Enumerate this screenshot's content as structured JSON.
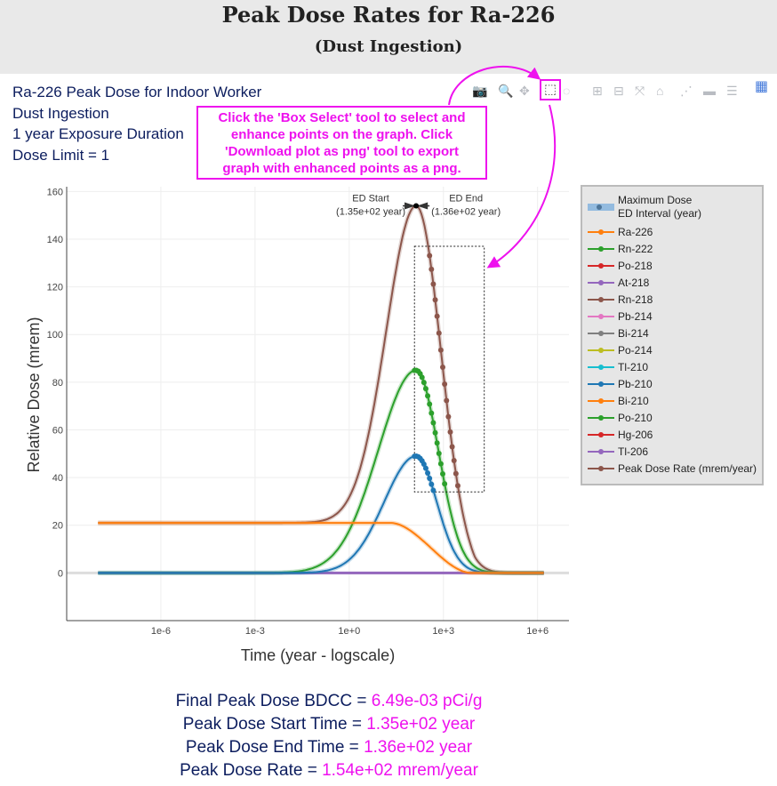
{
  "header": {
    "title": "Peak Dose Rates for Ra-226",
    "subtitle": "(Dust Ingestion)"
  },
  "info_lines": [
    "Ra-226 Peak Dose for Indoor Worker",
    "Dust Ingestion",
    "1 year Exposure Duration",
    "Dose Limit = 1"
  ],
  "callout": {
    "lines": [
      "Click the 'Box Select' tool to select and",
      "enhance points on the graph. Click",
      "'Download plot as png' tool to export",
      "graph with enhanced points as a png."
    ]
  },
  "modebar": {
    "tools": [
      {
        "name": "download-png-tool",
        "icon": "camera-icon",
        "glyph": "📷"
      },
      {
        "name": "zoom-tool",
        "icon": "zoom-icon",
        "glyph": "🔍"
      },
      {
        "name": "pan-tool",
        "icon": "pan-icon",
        "glyph": "✥"
      },
      {
        "name": "box-select-tool",
        "icon": "box-select-icon",
        "glyph": "⬚"
      },
      {
        "name": "lasso-select-tool",
        "icon": "lasso-icon",
        "glyph": "◌"
      },
      {
        "name": "zoom-in-tool",
        "icon": "zoom-in-icon",
        "glyph": "⊞"
      },
      {
        "name": "zoom-out-tool",
        "icon": "zoom-out-icon",
        "glyph": "⊟"
      },
      {
        "name": "autoscale-tool",
        "icon": "autoscale-icon",
        "glyph": "⤧"
      },
      {
        "name": "reset-axes-tool",
        "icon": "home-icon",
        "glyph": "⌂"
      },
      {
        "name": "spike-lines-tool",
        "icon": "spike-icon",
        "glyph": "⋰"
      },
      {
        "name": "hover-closest-tool",
        "icon": "hover-closest-icon",
        "glyph": "▬"
      },
      {
        "name": "hover-compare-tool",
        "icon": "hover-compare-icon",
        "glyph": "☰"
      },
      {
        "name": "plotly-logo",
        "icon": "plotly-logo-icon",
        "glyph": "▦"
      }
    ],
    "active_tool": "box-select-tool"
  },
  "chart_data": {
    "type": "line",
    "xlabel": "Time (year - logscale)",
    "ylabel": "Relative Dose (mrem)",
    "xscale": "log",
    "x_ticks": [
      "1e-6",
      "1e-3",
      "1e+0",
      "1e+3",
      "1e+6"
    ],
    "y_ticks": [
      "0",
      "20",
      "40",
      "60",
      "80",
      "100",
      "120",
      "140",
      "160"
    ],
    "xlim": [
      1e-09,
      10000000.0
    ],
    "ylim": [
      -20,
      162
    ],
    "grid": true,
    "legend_position": "right",
    "legend": [
      {
        "name": "Maximum Dose",
        "color": "#000000",
        "kind": "marker"
      },
      {
        "name": "ED Interval (year)",
        "color": "#6fa8dc",
        "kind": "band"
      },
      {
        "name": "Ra-226",
        "color": "#ff7f0e",
        "kind": "line"
      },
      {
        "name": "Rn-222",
        "color": "#2ca02c",
        "kind": "line"
      },
      {
        "name": "Po-218",
        "color": "#d62728",
        "kind": "line"
      },
      {
        "name": "At-218",
        "color": "#9467bd",
        "kind": "line"
      },
      {
        "name": "Rn-218",
        "color": "#8c564b",
        "kind": "line"
      },
      {
        "name": "Pb-214",
        "color": "#e377c2",
        "kind": "line"
      },
      {
        "name": "Bi-214",
        "color": "#7f7f7f",
        "kind": "line"
      },
      {
        "name": "Po-214",
        "color": "#bcbd22",
        "kind": "line"
      },
      {
        "name": "Tl-210",
        "color": "#17becf",
        "kind": "line"
      },
      {
        "name": "Pb-210",
        "color": "#1f77b4",
        "kind": "line"
      },
      {
        "name": "Bi-210",
        "color": "#ff7f0e",
        "kind": "line"
      },
      {
        "name": "Po-210",
        "color": "#2ca02c",
        "kind": "line"
      },
      {
        "name": "Hg-206",
        "color": "#d62728",
        "kind": "line"
      },
      {
        "name": "Tl-206",
        "color": "#9467bd",
        "kind": "line"
      },
      {
        "name": "Peak Dose Rate (mrem/year)",
        "color": "#8c564b",
        "kind": "line"
      }
    ],
    "series": [
      {
        "name": "Peak Dose Rate (mrem/year)",
        "color": "#8c564b",
        "peak_x": 135,
        "peak_y": 154,
        "baseline": 21,
        "rise_start": 0.01,
        "end_x": 10000
      },
      {
        "name": "Po-210",
        "color": "#2ca02c",
        "peak_x": 135,
        "peak_y": 85,
        "baseline": 0,
        "rise_start": 0.1,
        "end_x": 8000
      },
      {
        "name": "Pb-210",
        "color": "#1f77b4",
        "peak_x": 135,
        "peak_y": 49,
        "baseline": 0,
        "rise_start": 0.3,
        "end_x": 6000
      },
      {
        "name": "Ra-226",
        "color": "#ff7f0e",
        "peak_x": 1,
        "peak_y": 21,
        "baseline": 21,
        "rise_start": 100,
        "end_x": 8000
      }
    ],
    "annotations": {
      "ed_start_label": "ED Start",
      "ed_start_value": "(1.35e+02 year)",
      "ed_end_label": "ED End",
      "ed_end_value": "(1.36e+02 year)",
      "ed_start_x": 135,
      "ed_end_x": 136,
      "max_dose": 154
    },
    "selection_box": {
      "x0": 120,
      "x1": 20000,
      "y0": 34,
      "y1": 137
    }
  },
  "results": [
    {
      "label": "Final Peak Dose BDCC = ",
      "value": "6.49e-03 pCi/g"
    },
    {
      "label": "Peak Dose Start Time = ",
      "value": "1.35e+02 year"
    },
    {
      "label": "Peak Dose End Time = ",
      "value": "1.36e+02 year"
    },
    {
      "label": "Peak Dose Rate = ",
      "value": "1.54e+02 mrem/year"
    }
  ]
}
